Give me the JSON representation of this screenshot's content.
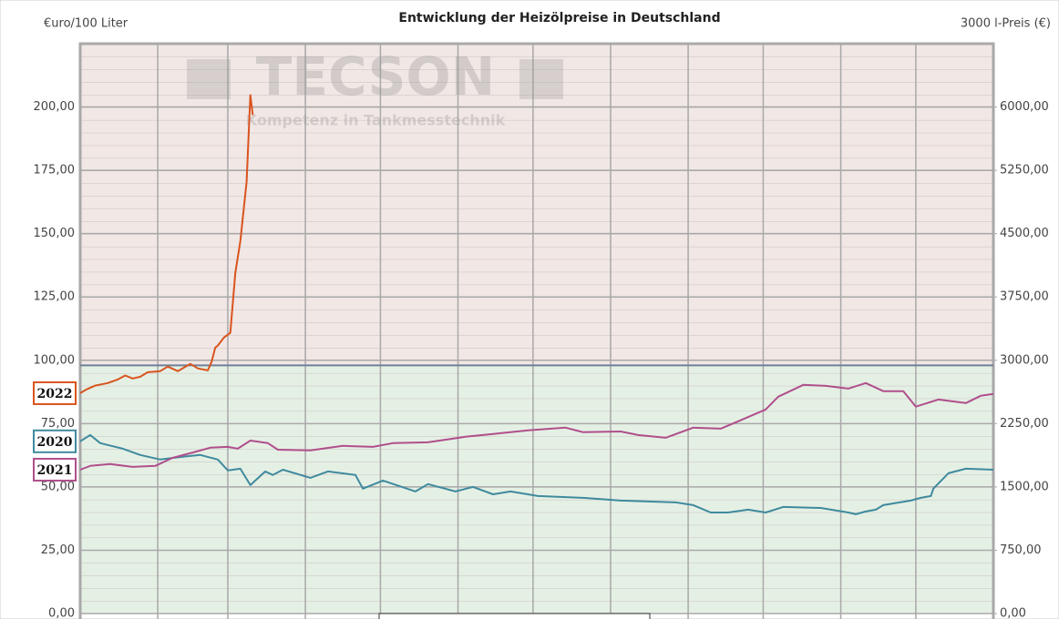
{
  "chart_data": {
    "type": "line",
    "title": "Entwicklung der Heizölpreise in Deutschland",
    "y_label": "€uro/100 Liter",
    "y2_label": "3000 l-Preis (€)",
    "watermark": {
      "title": "TECSON",
      "subtitle": "Kompetenz in Tankmesstechnik"
    },
    "xlim": [
      0,
      365
    ],
    "xticks": [
      0,
      31,
      59,
      90,
      120,
      151,
      181,
      212,
      243,
      273,
      304,
      334,
      365
    ],
    "ylim": [
      0,
      225
    ],
    "yticks": [
      {
        "value": 0,
        "label": "0,00"
      },
      {
        "value": 25,
        "label": "25,00"
      },
      {
        "value": 50,
        "label": "50,00"
      },
      {
        "value": 75,
        "label": "75,00"
      },
      {
        "value": 100,
        "label": "100,00"
      },
      {
        "value": 125,
        "label": "125,00"
      },
      {
        "value": 150,
        "label": "150,00"
      },
      {
        "value": 175,
        "label": "175,00"
      },
      {
        "value": 200,
        "label": "200,00"
      }
    ],
    "y2lim": [
      0,
      6750
    ],
    "y2ticks": [
      {
        "value": 0,
        "label": "0,00"
      },
      {
        "value": 750,
        "label": "750,00"
      },
      {
        "value": 1500,
        "label": "1500,00"
      },
      {
        "value": 2250,
        "label": "2250,00"
      },
      {
        "value": 3000,
        "label": "3000,00"
      },
      {
        "value": 3750,
        "label": "3750,00"
      },
      {
        "value": 4500,
        "label": "4500,00"
      },
      {
        "value": 5250,
        "label": "5250,00"
      },
      {
        "value": 6000,
        "label": "6000,00"
      }
    ],
    "grid": true,
    "threshold": 98,
    "series": [
      {
        "name": "2022",
        "color": "#d9541e",
        "x": [
          0,
          2.5,
          6,
          11,
          15,
          18,
          21,
          24,
          27,
          32,
          35,
          39,
          44,
          47,
          51,
          52.5,
          54,
          55,
          57.5,
          60,
          62,
          64,
          66.5,
          68,
          69
        ],
        "values": [
          87,
          88.5,
          90,
          91,
          92.4,
          94,
          92.8,
          93.5,
          95.3,
          95.7,
          97.5,
          95.7,
          98.6,
          96.8,
          96,
          99.3,
          105,
          105.8,
          109,
          110.8,
          134.5,
          147,
          170.5,
          204.7,
          196.8
        ]
      },
      {
        "name": "2020",
        "color": "#3f8a9e",
        "x": [
          0,
          4,
          8,
          17,
          24,
          32,
          41,
          48,
          55,
          59,
          64,
          68,
          74,
          77,
          81,
          92,
          99,
          110,
          113,
          121,
          134,
          139,
          150,
          157,
          165,
          172,
          183,
          201,
          216,
          238,
          245,
          252,
          259,
          267,
          274,
          281,
          296,
          307,
          310,
          314,
          318,
          321,
          332,
          336,
          340,
          341,
          347,
          354,
          365
        ],
        "values": [
          68,
          70.5,
          67.3,
          65.1,
          62.6,
          60.8,
          61.9,
          62.6,
          60.8,
          56.5,
          57.2,
          50.7,
          56.1,
          54.7,
          56.8,
          53.6,
          56.1,
          54.7,
          49.3,
          52.5,
          48.2,
          51.1,
          48.2,
          50,
          47.1,
          48.2,
          46.4,
          45.7,
          44.6,
          43.9,
          42.8,
          39.9,
          39.9,
          41,
          39.9,
          42.1,
          41.7,
          39.9,
          39.2,
          40.3,
          41,
          42.8,
          44.6,
          45.7,
          46.4,
          49.3,
          55.4,
          57.2,
          56.8
        ]
      },
      {
        "name": "2021",
        "color": "#b04f8c",
        "x": [
          0,
          4,
          12,
          21,
          30,
          37,
          44,
          52,
          59,
          63,
          68,
          75,
          79,
          92,
          105,
          117,
          125,
          139,
          154,
          165,
          179,
          194,
          201,
          216,
          223,
          234,
          245,
          256,
          263,
          274,
          279,
          289,
          298,
          307,
          314,
          321,
          329,
          334,
          343,
          354,
          360,
          365
        ],
        "values": [
          56.8,
          58.3,
          59,
          57.9,
          58.3,
          61.5,
          63.3,
          65.5,
          65.8,
          65.1,
          68.3,
          67.3,
          64.7,
          64.4,
          66.2,
          65.8,
          67.3,
          67.6,
          69.8,
          70.9,
          72.3,
          73.4,
          71.6,
          71.9,
          70.5,
          69.4,
          73.4,
          73,
          75.9,
          80.6,
          85.6,
          90.3,
          89.9,
          88.8,
          91,
          87.8,
          87.8,
          81.7,
          84.5,
          83.1,
          86,
          86.7
        ]
      }
    ]
  }
}
